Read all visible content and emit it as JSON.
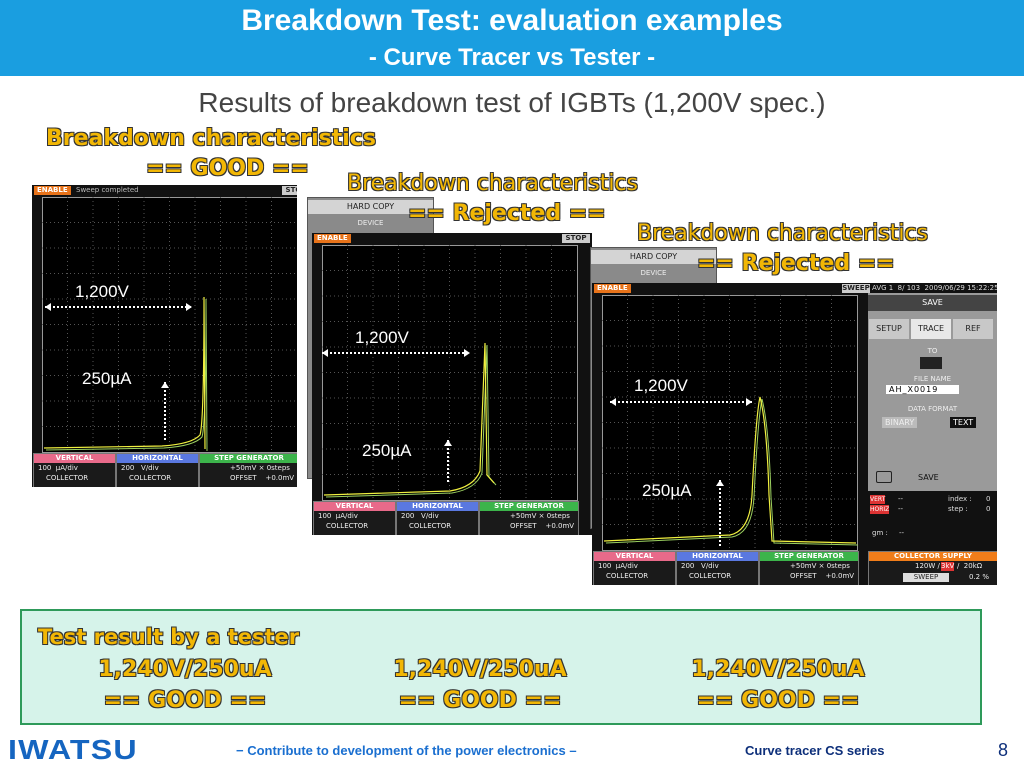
{
  "header": {
    "title": "Breakdown Test: evaluation examples",
    "subtitle": "- Curve Tracer vs Tester -"
  },
  "heading": "Results of breakdown test of IGBTs (1,200V spec.)",
  "samples": [
    {
      "caption": {
        "title": "Breakdown characteristics",
        "result": "== GOOD =="
      },
      "scope": {
        "enable": "ENABLE",
        "message": "Sweep completed",
        "button": "STOP",
        "voltage_label": "1,200V",
        "current_label": "250µA",
        "panels": [
          {
            "title": "VERTICAL",
            "line1": "100  µA/div",
            "line2": "COLLECTOR"
          },
          {
            "title": "HORIZONTAL",
            "line1": "200   V/div",
            "line2": "COLLECTOR"
          },
          {
            "title": "STEP GENERATOR",
            "line1": "+50mV × 0steps",
            "line2": "OFFSET    +0.0mV"
          }
        ]
      },
      "menu": {
        "title": "HARD COPY",
        "item": "DEVICE"
      }
    },
    {
      "caption": {
        "title": "Breakdown characteristics",
        "result": "== Rejected =="
      },
      "scope": {
        "enable": "ENABLE",
        "button": "STOP",
        "voltage_label": "1,200V",
        "current_label": "250µA",
        "panels": [
          {
            "title": "VERTICAL",
            "line1": "100  µA/div",
            "line2": "COLLECTOR"
          },
          {
            "title": "HORIZONTAL",
            "line1": "200   V/div",
            "line2": "COLLECTOR"
          },
          {
            "title": "STEP GENERATOR",
            "line1": "+50mV × 0steps",
            "line2": "OFFSET    +0.0mV"
          }
        ]
      },
      "menu": {
        "title": "HARD COPY",
        "item": "DEVICE"
      }
    },
    {
      "caption": {
        "title": "Breakdown characteristics",
        "result": "== Rejected =="
      },
      "scope": {
        "enable": "ENABLE",
        "button": "SWEEP",
        "info": "AVG 1  8/ 103  2009/06/29 15:22:25",
        "voltage_label": "1,200V",
        "current_label": "250µA",
        "panels": [
          {
            "title": "VERTICAL",
            "line1": "100  µA/div",
            "line2": "COLLECTOR"
          },
          {
            "title": "HORIZONTAL",
            "line1": "200   V/div",
            "line2": "COLLECTOR"
          },
          {
            "title": "STEP GENERATOR",
            "line1": "+50mV × 0steps",
            "line2": "OFFSET    +0.0mV"
          }
        ]
      },
      "side_panel": {
        "title": "SAVE",
        "tabs": [
          "SETUP",
          "TRACE",
          "REF"
        ],
        "to": "TO",
        "file_name_label": "FILE NAME",
        "file_name": "AH_X0019",
        "format_label": "DATA FORMAT",
        "formats": [
          "BINARY",
          "TEXT"
        ],
        "action": "SAVE",
        "readouts": [
          {
            "tag": "VERT",
            "value": "--",
            "key": "index :",
            "num": "0"
          },
          {
            "tag": "HORIZ",
            "value": "--",
            "key": "step :",
            "num": "0"
          }
        ],
        "gm": "gm :     --",
        "supply": {
          "title": "COLLECTOR SUPPLY",
          "power": "120W /",
          "voltage": "3kV",
          "resistance": "/  20kΩ",
          "mode": "SWEEP",
          "percent": "0.2 %"
        }
      }
    }
  ],
  "tester": {
    "title": "Test result by a tester",
    "results": [
      {
        "value": "1,240V/250uA",
        "verdict": "== GOOD =="
      },
      {
        "value": "1,240V/250uA",
        "verdict": "== GOOD =="
      },
      {
        "value": "1,240V/250uA",
        "verdict": "== GOOD =="
      }
    ]
  },
  "footer": {
    "logo": "IWATSU",
    "tagline": "− Contribute to development of the power electronics –",
    "series": "Curve tracer CS series",
    "page": "8"
  }
}
